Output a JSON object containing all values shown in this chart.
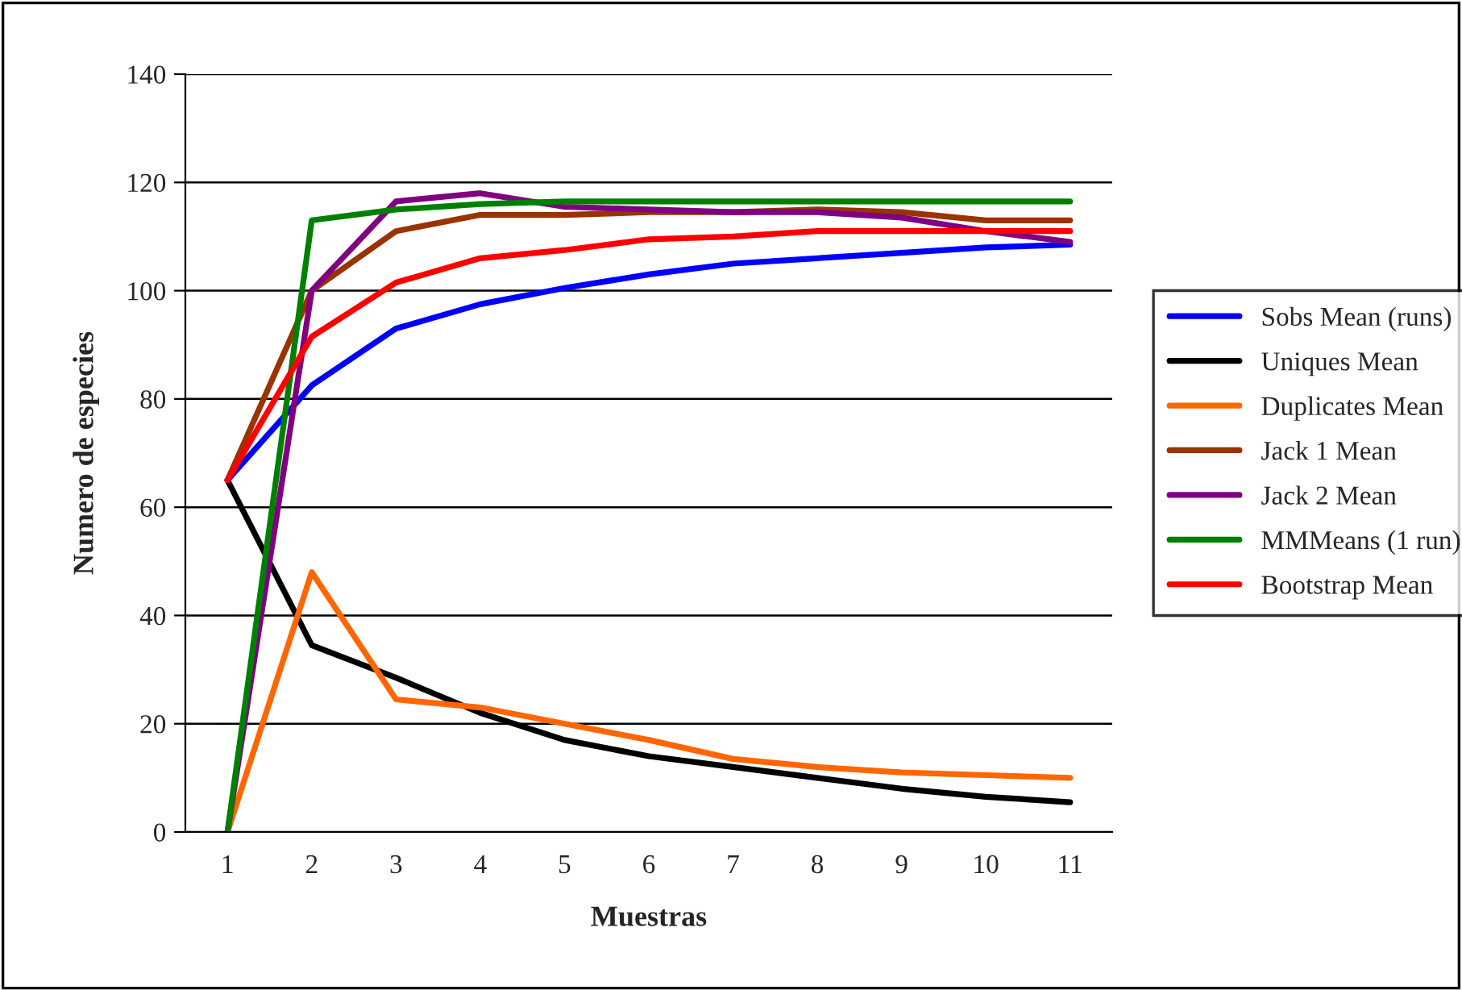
{
  "chart_data": {
    "type": "line",
    "xlabel": "Muestras",
    "ylabel": "Numero de especies",
    "categories": [
      "1",
      "2",
      "3",
      "4",
      "5",
      "6",
      "7",
      "8",
      "9",
      "10",
      "11"
    ],
    "series": [
      {
        "name": "Sobs Mean (runs)",
        "color": "#0000ff",
        "values": [
          65,
          82.5,
          93,
          97.5,
          100.5,
          103,
          105,
          106,
          107,
          108,
          108.5
        ]
      },
      {
        "name": "Uniques Mean",
        "color": "#000000",
        "values": [
          65,
          34.5,
          28.5,
          22,
          17,
          14,
          12,
          10,
          8,
          6.5,
          5.5
        ]
      },
      {
        "name": "Duplicates Mean",
        "color": "#ff6600",
        "values": [
          0,
          48,
          24.5,
          23,
          20,
          17,
          13.5,
          12,
          11,
          10.5,
          10
        ]
      },
      {
        "name": "Jack 1 Mean",
        "color": "#993300",
        "values": [
          65,
          100,
          111,
          114,
          114,
          114.5,
          114.5,
          115,
          114.5,
          113,
          113
        ]
      },
      {
        "name": "Jack 2 Mean",
        "color": "#800080",
        "values": [
          0,
          100,
          116.5,
          118,
          115.5,
          115,
          114.5,
          114.5,
          113.5,
          111,
          109
        ]
      },
      {
        "name": "MMMeans (1 run)",
        "color": "#008000",
        "values": [
          0,
          113,
          115,
          116,
          116.5,
          116.5,
          116.5,
          116.5,
          116.5,
          116.5,
          116.5
        ]
      },
      {
        "name": "Bootstrap Mean",
        "color": "#ff0000",
        "values": [
          65,
          91.5,
          101.5,
          106,
          107.5,
          109.5,
          110,
          111,
          111,
          111,
          111
        ]
      }
    ],
    "ylim": [
      0,
      140
    ],
    "yticks": [
      0,
      20,
      40,
      60,
      80,
      100,
      120,
      140
    ],
    "grid": "y",
    "legend": "right",
    "marker": "none",
    "line_style": "solid"
  }
}
